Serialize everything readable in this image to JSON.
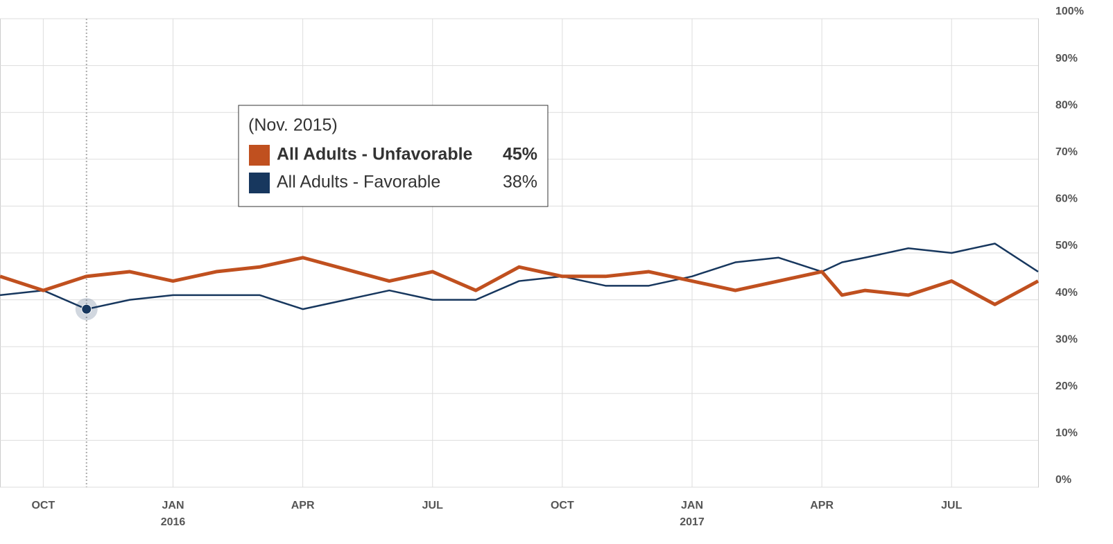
{
  "chart_data": {
    "type": "line",
    "x": [
      "2015-09",
      "2015-10",
      "2015-11",
      "2015-12",
      "2016-01",
      "2016-02",
      "2016-03",
      "2016-04",
      "2016-06",
      "2016-07",
      "2016-08",
      "2016-09",
      "2016-10",
      "2016-11",
      "2016-12",
      "2017-01",
      "2017-02",
      "2017-03",
      "2017-04",
      "2017-04-15",
      "2017-05",
      "2017-06",
      "2017-07",
      "2017-08",
      "2017-09"
    ],
    "series": [
      {
        "name": "All Adults - Unfavorable",
        "color": "#c0501f",
        "values": [
          45,
          42,
          45,
          46,
          44,
          46,
          47,
          49,
          44,
          46,
          42,
          47,
          45,
          45,
          46,
          44,
          42,
          44,
          46,
          41,
          42,
          41,
          44,
          39,
          44
        ]
      },
      {
        "name": "All Adults - Favorable",
        "color": "#17375e",
        "values": [
          41,
          42,
          38,
          40,
          41,
          41,
          41,
          38,
          42,
          40,
          40,
          44,
          45,
          43,
          43,
          45,
          48,
          49,
          46,
          48,
          49,
          51,
          50,
          52,
          46
        ]
      }
    ],
    "xlim": [
      "2015-09",
      "2017-09"
    ],
    "xticks": [
      {
        "value": "2015-10",
        "label": "OCT"
      },
      {
        "value": "2016-01",
        "label": "JAN",
        "sublabel": "2016"
      },
      {
        "value": "2016-04",
        "label": "APR"
      },
      {
        "value": "2016-07",
        "label": "JUL"
      },
      {
        "value": "2016-10",
        "label": "OCT"
      },
      {
        "value": "2017-01",
        "label": "JAN",
        "sublabel": "2017"
      },
      {
        "value": "2017-04",
        "label": "APR"
      },
      {
        "value": "2017-07",
        "label": "JUL"
      }
    ],
    "ylim": [
      0,
      100
    ],
    "yticks": [
      {
        "value": 0,
        "label": "0%"
      },
      {
        "value": 10,
        "label": "10%"
      },
      {
        "value": 20,
        "label": "20%"
      },
      {
        "value": 30,
        "label": "30%"
      },
      {
        "value": 40,
        "label": "40%"
      },
      {
        "value": 50,
        "label": "50%"
      },
      {
        "value": 60,
        "label": "60%"
      },
      {
        "value": 70,
        "label": "70%"
      },
      {
        "value": 80,
        "label": "80%"
      },
      {
        "value": 90,
        "label": "90%"
      },
      {
        "value": 100,
        "label": "100%"
      }
    ],
    "grid": true,
    "tooltip": {
      "title": "(Nov. 2015)",
      "index": 2,
      "value_labels": [
        "45%",
        "38%"
      ]
    }
  }
}
